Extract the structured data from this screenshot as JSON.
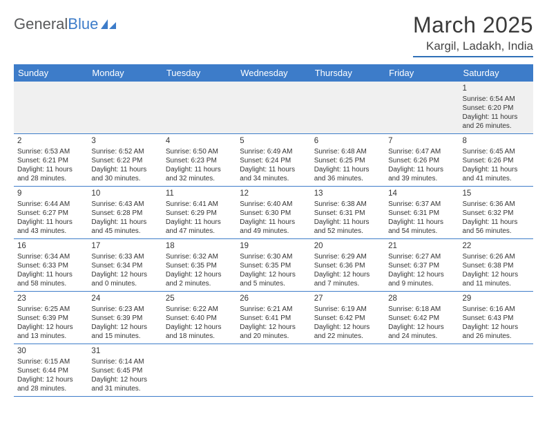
{
  "logo": {
    "text1": "General",
    "text2": "Blue"
  },
  "title": "March 2025",
  "location": "Kargil, Ladakh, India",
  "header_color": "#3d7cc9",
  "weekdays": [
    "Sunday",
    "Monday",
    "Tuesday",
    "Wednesday",
    "Thursday",
    "Friday",
    "Saturday"
  ],
  "weeks": [
    [
      null,
      null,
      null,
      null,
      null,
      null,
      {
        "n": "1",
        "sr": "Sunrise: 6:54 AM",
        "ss": "Sunset: 6:20 PM",
        "d1": "Daylight: 11 hours",
        "d2": "and 26 minutes."
      }
    ],
    [
      {
        "n": "2",
        "sr": "Sunrise: 6:53 AM",
        "ss": "Sunset: 6:21 PM",
        "d1": "Daylight: 11 hours",
        "d2": "and 28 minutes."
      },
      {
        "n": "3",
        "sr": "Sunrise: 6:52 AM",
        "ss": "Sunset: 6:22 PM",
        "d1": "Daylight: 11 hours",
        "d2": "and 30 minutes."
      },
      {
        "n": "4",
        "sr": "Sunrise: 6:50 AM",
        "ss": "Sunset: 6:23 PM",
        "d1": "Daylight: 11 hours",
        "d2": "and 32 minutes."
      },
      {
        "n": "5",
        "sr": "Sunrise: 6:49 AM",
        "ss": "Sunset: 6:24 PM",
        "d1": "Daylight: 11 hours",
        "d2": "and 34 minutes."
      },
      {
        "n": "6",
        "sr": "Sunrise: 6:48 AM",
        "ss": "Sunset: 6:25 PM",
        "d1": "Daylight: 11 hours",
        "d2": "and 36 minutes."
      },
      {
        "n": "7",
        "sr": "Sunrise: 6:47 AM",
        "ss": "Sunset: 6:26 PM",
        "d1": "Daylight: 11 hours",
        "d2": "and 39 minutes."
      },
      {
        "n": "8",
        "sr": "Sunrise: 6:45 AM",
        "ss": "Sunset: 6:26 PM",
        "d1": "Daylight: 11 hours",
        "d2": "and 41 minutes."
      }
    ],
    [
      {
        "n": "9",
        "sr": "Sunrise: 6:44 AM",
        "ss": "Sunset: 6:27 PM",
        "d1": "Daylight: 11 hours",
        "d2": "and 43 minutes."
      },
      {
        "n": "10",
        "sr": "Sunrise: 6:43 AM",
        "ss": "Sunset: 6:28 PM",
        "d1": "Daylight: 11 hours",
        "d2": "and 45 minutes."
      },
      {
        "n": "11",
        "sr": "Sunrise: 6:41 AM",
        "ss": "Sunset: 6:29 PM",
        "d1": "Daylight: 11 hours",
        "d2": "and 47 minutes."
      },
      {
        "n": "12",
        "sr": "Sunrise: 6:40 AM",
        "ss": "Sunset: 6:30 PM",
        "d1": "Daylight: 11 hours",
        "d2": "and 49 minutes."
      },
      {
        "n": "13",
        "sr": "Sunrise: 6:38 AM",
        "ss": "Sunset: 6:31 PM",
        "d1": "Daylight: 11 hours",
        "d2": "and 52 minutes."
      },
      {
        "n": "14",
        "sr": "Sunrise: 6:37 AM",
        "ss": "Sunset: 6:31 PM",
        "d1": "Daylight: 11 hours",
        "d2": "and 54 minutes."
      },
      {
        "n": "15",
        "sr": "Sunrise: 6:36 AM",
        "ss": "Sunset: 6:32 PM",
        "d1": "Daylight: 11 hours",
        "d2": "and 56 minutes."
      }
    ],
    [
      {
        "n": "16",
        "sr": "Sunrise: 6:34 AM",
        "ss": "Sunset: 6:33 PM",
        "d1": "Daylight: 11 hours",
        "d2": "and 58 minutes."
      },
      {
        "n": "17",
        "sr": "Sunrise: 6:33 AM",
        "ss": "Sunset: 6:34 PM",
        "d1": "Daylight: 12 hours",
        "d2": "and 0 minutes."
      },
      {
        "n": "18",
        "sr": "Sunrise: 6:32 AM",
        "ss": "Sunset: 6:35 PM",
        "d1": "Daylight: 12 hours",
        "d2": "and 2 minutes."
      },
      {
        "n": "19",
        "sr": "Sunrise: 6:30 AM",
        "ss": "Sunset: 6:35 PM",
        "d1": "Daylight: 12 hours",
        "d2": "and 5 minutes."
      },
      {
        "n": "20",
        "sr": "Sunrise: 6:29 AM",
        "ss": "Sunset: 6:36 PM",
        "d1": "Daylight: 12 hours",
        "d2": "and 7 minutes."
      },
      {
        "n": "21",
        "sr": "Sunrise: 6:27 AM",
        "ss": "Sunset: 6:37 PM",
        "d1": "Daylight: 12 hours",
        "d2": "and 9 minutes."
      },
      {
        "n": "22",
        "sr": "Sunrise: 6:26 AM",
        "ss": "Sunset: 6:38 PM",
        "d1": "Daylight: 12 hours",
        "d2": "and 11 minutes."
      }
    ],
    [
      {
        "n": "23",
        "sr": "Sunrise: 6:25 AM",
        "ss": "Sunset: 6:39 PM",
        "d1": "Daylight: 12 hours",
        "d2": "and 13 minutes."
      },
      {
        "n": "24",
        "sr": "Sunrise: 6:23 AM",
        "ss": "Sunset: 6:39 PM",
        "d1": "Daylight: 12 hours",
        "d2": "and 15 minutes."
      },
      {
        "n": "25",
        "sr": "Sunrise: 6:22 AM",
        "ss": "Sunset: 6:40 PM",
        "d1": "Daylight: 12 hours",
        "d2": "and 18 minutes."
      },
      {
        "n": "26",
        "sr": "Sunrise: 6:21 AM",
        "ss": "Sunset: 6:41 PM",
        "d1": "Daylight: 12 hours",
        "d2": "and 20 minutes."
      },
      {
        "n": "27",
        "sr": "Sunrise: 6:19 AM",
        "ss": "Sunset: 6:42 PM",
        "d1": "Daylight: 12 hours",
        "d2": "and 22 minutes."
      },
      {
        "n": "28",
        "sr": "Sunrise: 6:18 AM",
        "ss": "Sunset: 6:42 PM",
        "d1": "Daylight: 12 hours",
        "d2": "and 24 minutes."
      },
      {
        "n": "29",
        "sr": "Sunrise: 6:16 AM",
        "ss": "Sunset: 6:43 PM",
        "d1": "Daylight: 12 hours",
        "d2": "and 26 minutes."
      }
    ],
    [
      {
        "n": "30",
        "sr": "Sunrise: 6:15 AM",
        "ss": "Sunset: 6:44 PM",
        "d1": "Daylight: 12 hours",
        "d2": "and 28 minutes."
      },
      {
        "n": "31",
        "sr": "Sunrise: 6:14 AM",
        "ss": "Sunset: 6:45 PM",
        "d1": "Daylight: 12 hours",
        "d2": "and 31 minutes."
      },
      null,
      null,
      null,
      null,
      null
    ]
  ]
}
